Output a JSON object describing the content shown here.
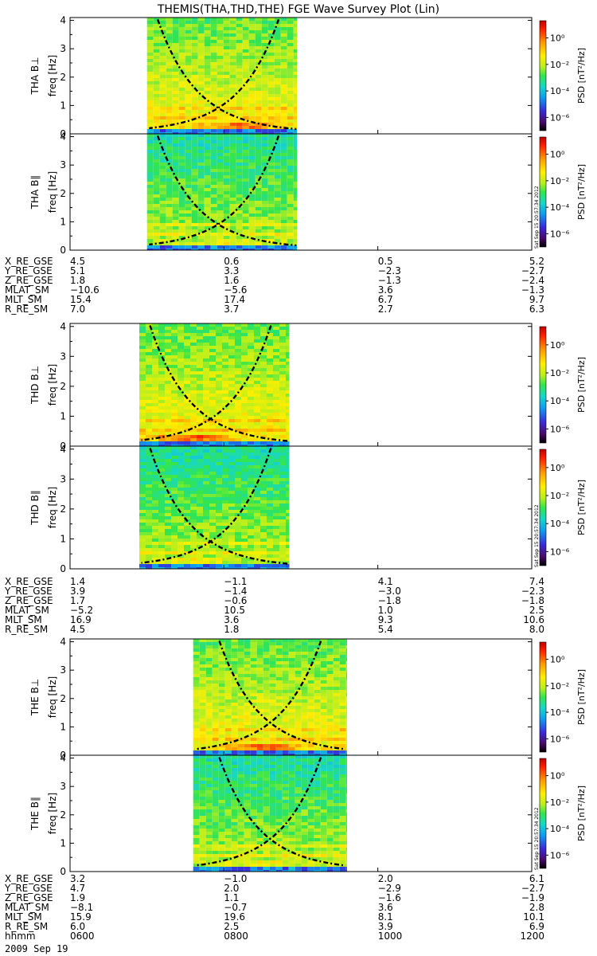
{
  "title": "THEMIS(THA,THD,THE) FGE Wave Survey Plot (Lin)",
  "stamp": "Sat Sep 15 20:57:34 2012",
  "colorbar": {
    "label": "PSD [nT²/Hz]",
    "tick_labels": [
      "10⁰",
      "10⁻²",
      "10⁻⁴",
      "10⁻⁶"
    ],
    "log_range": [
      -7,
      1.3
    ]
  },
  "axis": {
    "ylabel": "freq [Hz]",
    "ytick_labels": [
      "0",
      "1",
      "2",
      "3",
      "4"
    ],
    "ylim": [
      0,
      4.1
    ],
    "xlim_hours": [
      6,
      12
    ],
    "x_ticks_hours": [
      6,
      8,
      10,
      12
    ]
  },
  "chart_data": [
    {
      "type": "heatmap",
      "probe": "THA",
      "panel_label": "THA B⊥",
      "data_start": 7.0,
      "data_end": 8.95,
      "band_center": 8.2,
      "band_freq": 0.28,
      "max_log_psd": 0.5,
      "cyclotron_curves": [
        {
          "peak_hours": 7.1,
          "dir": 1
        },
        {
          "peak_hours": 8.75,
          "dir": -1
        }
      ]
    },
    {
      "type": "heatmap",
      "probe": "THA",
      "panel_label": "THA B∥",
      "data_start": 7.0,
      "data_end": 8.95,
      "band_center": 8.2,
      "band_freq": 0.28,
      "max_log_psd": -0.8,
      "cyclotron_curves": [
        {
          "peak_hours": 7.1,
          "dir": 1
        },
        {
          "peak_hours": 8.75,
          "dir": -1
        }
      ]
    },
    {
      "type": "heatmap",
      "probe": "THD",
      "panel_label": "THD B⊥",
      "data_start": 6.9,
      "data_end": 8.85,
      "band_center": 7.55,
      "band_freq": 0.28,
      "max_log_psd": 0.5,
      "cyclotron_curves": [
        {
          "peak_hours": 7.0,
          "dir": 1
        },
        {
          "peak_hours": 8.65,
          "dir": -1
        }
      ]
    },
    {
      "type": "heatmap",
      "probe": "THD",
      "panel_label": "THD B∥",
      "data_start": 6.9,
      "data_end": 8.85,
      "band_center": 7.55,
      "band_freq": 0.28,
      "max_log_psd": -0.8,
      "cyclotron_curves": [
        {
          "peak_hours": 7.0,
          "dir": 1
        },
        {
          "peak_hours": 8.65,
          "dir": -1
        }
      ]
    },
    {
      "type": "heatmap",
      "probe": "THE",
      "panel_label": "THE B⊥",
      "data_start": 7.6,
      "data_end": 9.6,
      "band_center": 8.5,
      "band_freq": 0.28,
      "max_log_psd": 0.5,
      "cyclotron_curves": [
        {
          "peak_hours": 7.9,
          "dir": 1
        },
        {
          "peak_hours": 9.3,
          "dir": -1
        }
      ]
    },
    {
      "type": "heatmap",
      "probe": "THE",
      "panel_label": "THE B∥",
      "data_start": 7.6,
      "data_end": 9.6,
      "band_center": 8.5,
      "band_freq": 0.28,
      "max_log_psd": -0.8,
      "cyclotron_curves": [
        {
          "peak_hours": 7.9,
          "dir": 1
        },
        {
          "peak_hours": 9.3,
          "dir": -1
        }
      ]
    }
  ],
  "ephemeris": [
    {
      "rows": [
        {
          "label": "X_RE_GSE",
          "values": [
            "4.5",
            "0.6",
            "0.5",
            "5.2"
          ]
        },
        {
          "label": "Y_RE_GSE",
          "values": [
            "5.1",
            "3.3",
            "−2.3",
            "−2.7"
          ]
        },
        {
          "label": "Z_RE_GSE",
          "values": [
            "1.8",
            "1.6",
            "−1.3",
            "−2.4"
          ]
        },
        {
          "label": "MLAT_SM",
          "values": [
            "−10.6",
            "−5.6",
            "3.6",
            "−1.3"
          ]
        },
        {
          "label": "MLT_SM",
          "values": [
            "15.4",
            "17.4",
            "6.7",
            "9.7"
          ]
        },
        {
          "label": "R_RE_SM",
          "values": [
            "7.0",
            "3.7",
            "2.7",
            "6.3"
          ]
        }
      ]
    },
    {
      "rows": [
        {
          "label": "X_RE_GSE",
          "values": [
            "1.4",
            "−1.1",
            "4.1",
            "7.4"
          ]
        },
        {
          "label": "Y_RE_GSE",
          "values": [
            "3.9",
            "−1.4",
            "−3.0",
            "−2.3"
          ]
        },
        {
          "label": "Z_RE_GSE",
          "values": [
            "1.7",
            "−0.6",
            "−1.8",
            "−1.8"
          ]
        },
        {
          "label": "MLAT_SM",
          "values": [
            "−5.2",
            "10.5",
            "1.0",
            "2.5"
          ]
        },
        {
          "label": "MLT_SM",
          "values": [
            "16.9",
            "3.6",
            "9.3",
            "10.6"
          ]
        },
        {
          "label": "R_RE_SM",
          "values": [
            "4.5",
            "1.8",
            "5.4",
            "8.0"
          ]
        }
      ]
    },
    {
      "rows": [
        {
          "label": "X_RE_GSE",
          "values": [
            "3.2",
            "−1.0",
            "2.0",
            "6.1"
          ]
        },
        {
          "label": "Y_RE_GSE",
          "values": [
            "4.7",
            "2.0",
            "−2.9",
            "−2.7"
          ]
        },
        {
          "label": "Z_RE_GSE",
          "values": [
            "1.9",
            "1.1",
            "−1.6",
            "−1.9"
          ]
        },
        {
          "label": "MLAT_SM",
          "values": [
            "−8.1",
            "−0.7",
            "3.6",
            "2.8"
          ]
        },
        {
          "label": "MLT_SM",
          "values": [
            "15.9",
            "19.6",
            "8.1",
            "10.1"
          ]
        },
        {
          "label": "R_RE_SM",
          "values": [
            "6.0",
            "2.5",
            "3.9",
            "6.9"
          ]
        },
        {
          "label": "hhmm",
          "values": [
            "0600",
            "0800",
            "1000",
            "1200"
          ]
        }
      ],
      "date": "2009 Sep 19"
    }
  ]
}
